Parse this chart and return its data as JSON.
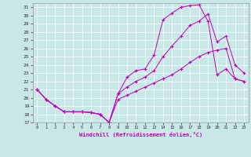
{
  "xlabel": "Windchill (Refroidissement éolien,°C)",
  "xlim_min": -0.5,
  "xlim_max": 23.5,
  "ylim_min": 17,
  "ylim_max": 31.5,
  "yticks": [
    17,
    18,
    19,
    20,
    21,
    22,
    23,
    24,
    25,
    26,
    27,
    28,
    29,
    30,
    31
  ],
  "xticks": [
    0,
    1,
    2,
    3,
    4,
    5,
    6,
    7,
    8,
    9,
    10,
    11,
    12,
    13,
    14,
    15,
    16,
    17,
    18,
    19,
    20,
    21,
    22,
    23
  ],
  "bg_color": "#c8e8e8",
  "line_color": "#bb00bb",
  "grid_color": "#ffffff",
  "line1_x": [
    0,
    1,
    2,
    3,
    4,
    5,
    6,
    7,
    8,
    9,
    10,
    11,
    12,
    13,
    14,
    15,
    16,
    17,
    18,
    19,
    20,
    21,
    22,
    23
  ],
  "line1_y": [
    21.0,
    19.8,
    19.0,
    18.3,
    18.3,
    18.3,
    18.2,
    18.0,
    17.0,
    20.5,
    22.5,
    23.3,
    23.5,
    25.2,
    29.5,
    30.3,
    31.0,
    31.2,
    31.3,
    29.3,
    22.8,
    23.5,
    22.3,
    22.0
  ],
  "line2_x": [
    0,
    1,
    2,
    3,
    4,
    5,
    6,
    7,
    8,
    9,
    10,
    11,
    12,
    13,
    14,
    15,
    16,
    17,
    18,
    19,
    20,
    21,
    22,
    23
  ],
  "line2_y": [
    21.0,
    19.8,
    19.0,
    18.3,
    18.3,
    18.3,
    18.2,
    18.0,
    17.0,
    20.5,
    21.3,
    22.0,
    22.5,
    23.3,
    25.0,
    26.3,
    27.5,
    28.8,
    29.3,
    30.2,
    26.8,
    27.5,
    24.0,
    23.0
  ],
  "line3_x": [
    0,
    1,
    2,
    3,
    4,
    5,
    6,
    7,
    8,
    9,
    10,
    11,
    12,
    13,
    14,
    15,
    16,
    17,
    18,
    19,
    20,
    21,
    22,
    23
  ],
  "line3_y": [
    21.0,
    19.8,
    19.0,
    18.3,
    18.3,
    18.3,
    18.2,
    18.0,
    17.0,
    19.8,
    20.3,
    20.8,
    21.3,
    21.8,
    22.3,
    22.8,
    23.5,
    24.3,
    25.0,
    25.5,
    25.8,
    26.0,
    22.3,
    22.0
  ]
}
